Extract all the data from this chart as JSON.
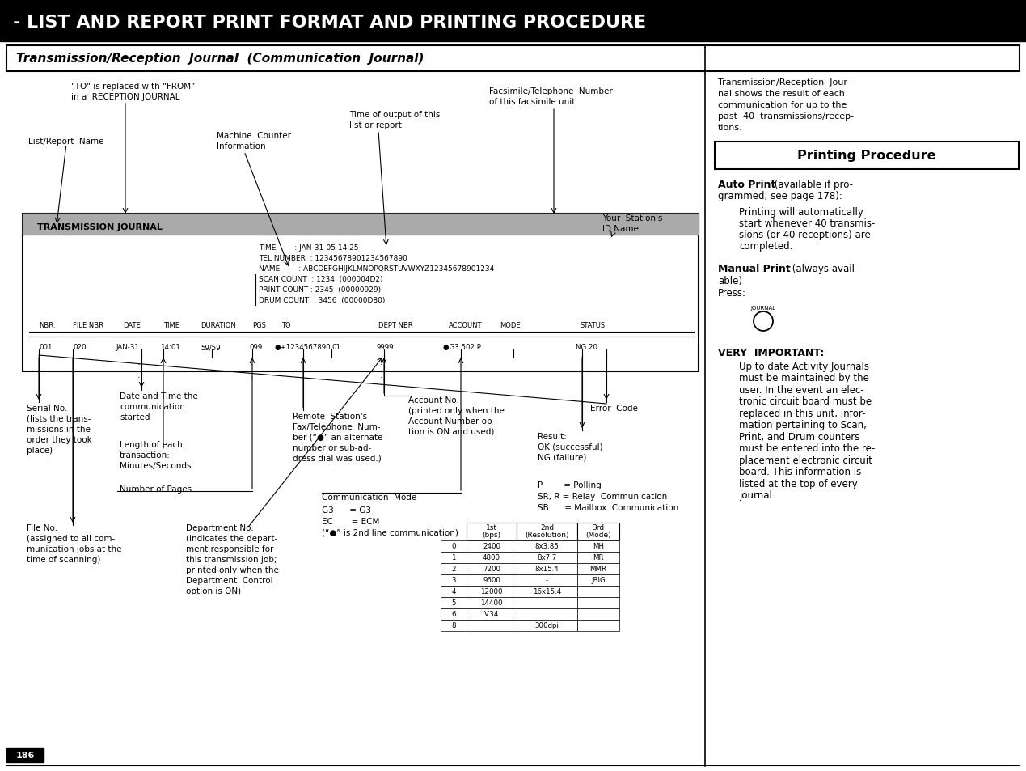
{
  "title": "- LIST AND REPORT PRINT FORMAT AND PRINTING PROCEDURE",
  "subtitle": "Transmission/Reception  Journal  (Communication  Journal)",
  "bg_color": "#ffffff",
  "title_bg": "#000000",
  "title_color": "#ffffff",
  "page_number": "186",
  "right_top_lines": [
    "Transmission/Reception  Jour-",
    "nal shows the result of each",
    "communication for up to the",
    "past  40  transmissions/recep-",
    "tions."
  ],
  "auto_print_desc": [
    "Printing will automatically",
    "start whenever 40 transmis-",
    "sions (or 40 receptions) are",
    "completed."
  ],
  "very_imp_lines": [
    "Up to date Activity Journals",
    "must be maintained by the",
    "user. In the event an elec-",
    "tronic circuit board must be",
    "replaced in this unit, infor-",
    "mation pertaining to Scan,",
    "Print, and Drum counters",
    "must be entered into the re-",
    "placement electronic circuit",
    "board. This information is",
    "listed at the top of every",
    "journal."
  ],
  "journal_lines": [
    "TIME        : JAN-31-05 14:25",
    "TEL NUMBER  : 12345678901234567890",
    "NAME        : ABCDEFGHIJKLMNOPQRSTUVWXYZ12345678901234",
    "SCAN COUNT  : 1234  (000004D2)",
    "PRINT COUNT : 2345  (00000929)",
    "DRUM COUNT  : 3456  (00000D80)"
  ],
  "col_headers": [
    [
      "NBR.",
      48
    ],
    [
      "FILE NBR",
      90
    ],
    [
      "DATE",
      152
    ],
    [
      "TIME",
      202
    ],
    [
      "DURATION",
      248
    ],
    [
      "PGS",
      312
    ],
    [
      "TO",
      348
    ],
    [
      "DEPT NBR",
      468
    ],
    [
      "ACCOUNT",
      555
    ],
    [
      "MODE",
      618
    ],
    [
      "STATUS",
      718
    ]
  ],
  "data_row": [
    [
      "001",
      48
    ],
    [
      "020",
      90
    ],
    [
      "JAN-31",
      143
    ],
    [
      "14:01",
      198
    ],
    [
      "59/59",
      248
    ],
    [
      "099",
      308
    ],
    [
      "●+1234567890",
      340
    ],
    [
      "01",
      410
    ],
    [
      "9999",
      465
    ],
    [
      "●G3 502 P",
      548
    ],
    [
      "NG 20",
      712
    ]
  ],
  "table_rows": [
    [
      "0",
      "2400",
      "8x3.85",
      "MH"
    ],
    [
      "1",
      "4800",
      "8x7.7",
      "MR"
    ],
    [
      "2",
      "7200",
      "8x15.4",
      "MMR"
    ],
    [
      "3",
      "9600",
      "-",
      "JBIG"
    ],
    [
      "4",
      "12000",
      "16x15.4",
      ""
    ],
    [
      "5",
      "14400",
      "",
      ""
    ],
    [
      "6",
      "V.34",
      "",
      ""
    ],
    [
      "8",
      "",
      "300dpi",
      ""
    ]
  ]
}
